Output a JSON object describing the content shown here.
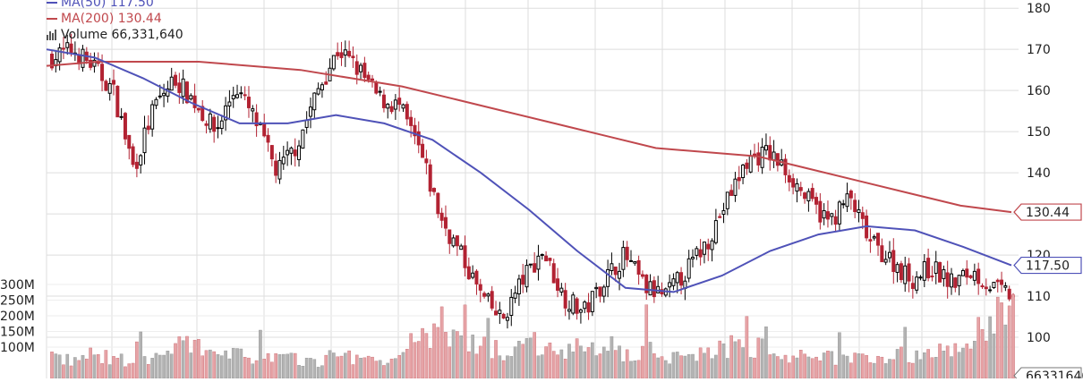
{
  "legend": {
    "ma50": "MA(50) 117.50",
    "ma200": "MA(200) 130.44",
    "volume": "Volume 66,331,640"
  },
  "colors": {
    "up": "#000000",
    "down": "#b22232",
    "ma50": "#4f52b8",
    "ma200": "#c0484d",
    "vol_up": "#b3b3b3",
    "vol_down": "#e6a3a6",
    "grid": "#dddddd"
  },
  "chart_data": {
    "type": "candlestick",
    "price_axis": {
      "min": 90,
      "max": 182,
      "ticks": [
        100,
        110,
        120,
        130,
        140,
        150,
        160,
        170,
        180
      ],
      "tick_labels": [
        "100",
        "110",
        "120",
        "130",
        "140",
        "150",
        "160",
        "170",
        "180"
      ]
    },
    "volume_axis": {
      "min": 0,
      "max": 300000000,
      "ticks": [
        100000000,
        150000000,
        200000000,
        250000000,
        300000000
      ],
      "tick_labels": [
        "100M",
        "150M",
        "200M",
        "250M",
        "300M"
      ]
    },
    "last_values": {
      "ma200": "130.44",
      "ma50": "117.50",
      "volume": "66331640"
    },
    "ma50_points": [
      170,
      168,
      163,
      157,
      152,
      152,
      154,
      152,
      148,
      140,
      131,
      121,
      112,
      111,
      115,
      121,
      125,
      127,
      126,
      122,
      117.5
    ],
    "ma200_points": [
      166,
      167,
      167,
      167,
      166,
      165,
      163,
      161,
      158,
      155,
      152,
      149,
      146,
      145,
      144,
      141,
      138,
      135,
      132,
      130.44
    ],
    "price_path": [
      168,
      170,
      166,
      160,
      141,
      156,
      163,
      157,
      150,
      161,
      152,
      140,
      147,
      160,
      170,
      165,
      158,
      156,
      145,
      129,
      120,
      110,
      104,
      114,
      121,
      110,
      106,
      114,
      120,
      112,
      110,
      116,
      123,
      133,
      143,
      145,
      140,
      133,
      128,
      134,
      123,
      119,
      114,
      117,
      113,
      116,
      112,
      110
    ],
    "volume_profile": [
      80,
      60,
      85,
      65,
      70,
      60,
      110,
      120,
      75,
      80,
      85,
      70,
      65,
      60,
      80,
      75,
      70,
      60,
      130,
      200,
      110,
      120,
      95,
      115,
      125,
      110,
      100,
      85,
      90,
      105,
      80,
      70,
      100,
      110,
      120,
      95,
      80,
      70,
      75,
      80,
      72,
      90,
      78,
      85,
      95,
      170,
      210,
      220
    ]
  }
}
